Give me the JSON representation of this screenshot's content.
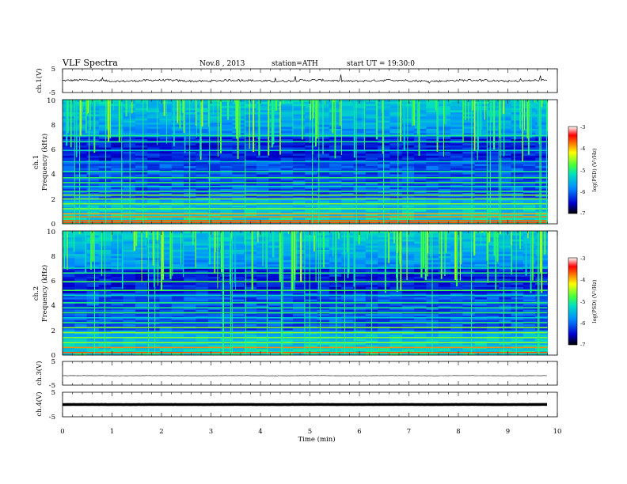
{
  "header": {
    "title": "VLF Spectra",
    "date": "Nov.8 , 2013",
    "station": "station=ATH",
    "start": "start UT = 19:30:0"
  },
  "chart_data": [
    {
      "type": "line",
      "panel": "ch1-waveform",
      "ylabel": "ch.1(V)",
      "ytick_labels": [
        "5",
        "-5"
      ],
      "ylim": [
        -5,
        5
      ],
      "xlim": [
        0,
        10
      ],
      "data_end_min": 9.8,
      "baseline_v": 0.0,
      "series": [
        {
          "color": "#000000"
        }
      ]
    },
    {
      "type": "heatmap",
      "panel": "ch1-spectrogram",
      "ylabel": [
        "ch.1",
        "Frequency (kHz)"
      ],
      "ytick_labels": [
        "0",
        "2",
        "4",
        "6",
        "8",
        "10"
      ],
      "ylim": [
        0,
        10
      ],
      "xlim": [
        0,
        10
      ],
      "colorbar": {
        "label": "log(PSD) (V²/Hz)",
        "ticks": [
          "-3",
          "-4",
          "-5",
          "-6",
          "-7"
        ],
        "range": [
          -7,
          -3
        ]
      },
      "bands_khz": [
        0.1,
        0.25,
        0.55,
        0.8,
        1.2,
        1.6,
        2.0,
        2.3,
        2.6,
        3.0,
        3.3,
        3.7,
        4.2,
        5.0,
        5.9,
        6.6,
        7.1
      ]
    },
    {
      "type": "heatmap",
      "panel": "ch2-spectrogram",
      "ylabel": [
        "ch.2",
        "Frequency (kHz)"
      ],
      "ytick_labels": [
        "0",
        "2",
        "4",
        "6",
        "8",
        "10"
      ],
      "ylim": [
        0,
        10
      ],
      "xlim": [
        0,
        10
      ],
      "colorbar": {
        "label": "log(PSD) (V²/Hz)",
        "ticks": [
          "-3",
          "-4",
          "-5",
          "-6",
          "-7"
        ],
        "range": [
          -7,
          -3
        ]
      },
      "bands_khz": [
        0.2,
        0.6,
        1.0,
        1.4,
        1.8,
        2.2,
        2.6,
        3.0,
        3.4,
        3.8,
        4.2,
        4.8,
        5.2,
        5.9,
        6.6,
        7.0
      ]
    },
    {
      "type": "line",
      "panel": "ch3-waveform",
      "ylabel": "ch.3(V)",
      "ytick_labels": [
        "5",
        "-5"
      ],
      "ylim": [
        -5,
        5
      ],
      "xlim": [
        0,
        10
      ],
      "data_end_min": 9.8,
      "baseline_v": -1.0,
      "series": [
        {
          "color": "#000000"
        }
      ]
    },
    {
      "type": "line",
      "panel": "ch4-waveform",
      "ylabel": "ch.4(V)",
      "ytick_labels": [
        "5",
        "-5"
      ],
      "ylim": [
        -5,
        5
      ],
      "xlim": [
        0,
        10
      ],
      "data_end_min": 9.8,
      "baseline_v": 0.0,
      "series": [
        {
          "color": "#000000"
        }
      ]
    }
  ],
  "xaxis": {
    "label": "Time (min)",
    "tick_labels": [
      "0",
      "1",
      "2",
      "3",
      "4",
      "5",
      "6",
      "7",
      "8",
      "9",
      "10"
    ]
  }
}
